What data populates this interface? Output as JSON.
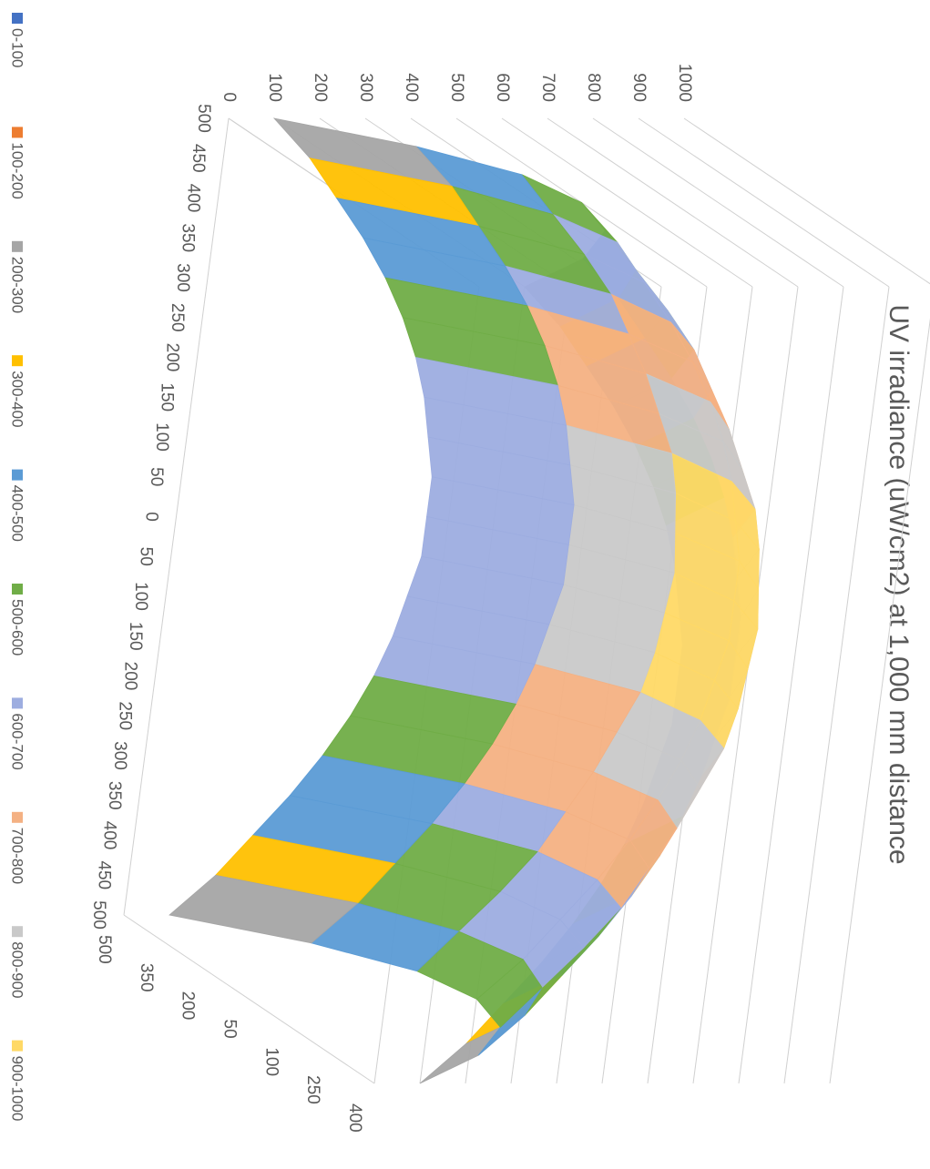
{
  "chart_data": {
    "type": "surface",
    "title": "UV irradiance (uW/cm2) at 1,000 mm distance",
    "categories": [
      "500",
      "450",
      "400",
      "350",
      "300",
      "250",
      "200",
      "150",
      "100",
      "50",
      "0",
      "50",
      "100",
      "150",
      "200",
      "250",
      "300",
      "350",
      "400",
      "450",
      "500"
    ],
    "depth_categories": [
      "500",
      "350",
      "200",
      "50",
      "100",
      "250",
      "400"
    ],
    "values": [
      [
        100,
        190,
        260,
        330,
        390,
        440,
        480,
        510,
        530,
        550,
        550,
        550,
        530,
        510,
        480,
        440,
        390,
        330,
        260,
        190,
        100
      ],
      [
        320,
        410,
        480,
        550,
        610,
        660,
        700,
        730,
        750,
        770,
        770,
        770,
        750,
        730,
        700,
        660,
        610,
        550,
        480,
        410,
        320
      ],
      [
        460,
        540,
        620,
        690,
        740,
        790,
        830,
        870,
        890,
        900,
        910,
        900,
        890,
        870,
        830,
        790,
        740,
        690,
        620,
        540,
        460
      ],
      [
        500,
        590,
        660,
        730,
        790,
        840,
        880,
        910,
        930,
        950,
        950,
        950,
        930,
        910,
        880,
        840,
        790,
        730,
        660,
        590,
        500
      ],
      [
        460,
        540,
        620,
        690,
        740,
        790,
        830,
        870,
        890,
        900,
        910,
        900,
        890,
        870,
        830,
        790,
        740,
        690,
        620,
        540,
        460
      ],
      [
        320,
        410,
        480,
        550,
        610,
        660,
        700,
        730,
        750,
        770,
        770,
        770,
        750,
        730,
        700,
        660,
        610,
        550,
        480,
        410,
        320
      ],
      [
        100,
        190,
        260,
        330,
        390,
        440,
        480,
        510,
        530,
        550,
        550,
        550,
        530,
        510,
        480,
        440,
        390,
        330,
        260,
        190,
        100
      ]
    ],
    "ylim": [
      0,
      1000
    ],
    "yticks": [
      0,
      100,
      200,
      300,
      400,
      500,
      600,
      700,
      800,
      900,
      1000
    ],
    "grid": true,
    "legend_position": "bottom",
    "bands": [
      {
        "name": "0-100",
        "color": "#4472c4"
      },
      {
        "name": "100-200",
        "color": "#ed7d31"
      },
      {
        "name": "200-300",
        "color": "#a5a5a5"
      },
      {
        "name": "300-400",
        "color": "#ffc000"
      },
      {
        "name": "400-500",
        "color": "#5b9bd5"
      },
      {
        "name": "500-600",
        "color": "#70ad47"
      },
      {
        "name": "600-700",
        "color": "#9dade0"
      },
      {
        "name": "700-800",
        "color": "#f4b183"
      },
      {
        "name": "800-900",
        "color": "#c9c9c9"
      },
      {
        "name": "900-1000",
        "color": "#ffd966"
      }
    ]
  }
}
